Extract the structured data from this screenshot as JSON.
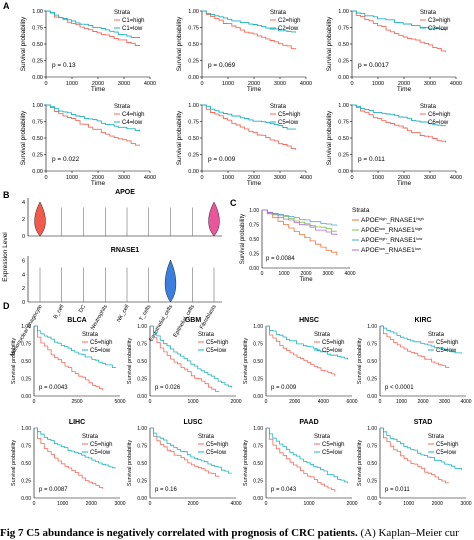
{
  "panels": {
    "A": {
      "label": "A",
      "plots": [
        {
          "strata": "Strata",
          "high": "C1=high",
          "low": "C1=low",
          "p": "p = 0.13",
          "ylabel": "Survival probability",
          "xlabel": "Time",
          "xticks": [
            "0",
            "1000",
            "2000",
            "3000",
            "4000"
          ],
          "yticks": [
            "0.00",
            "0.25",
            "0.50",
            "0.75",
            "1.00"
          ]
        },
        {
          "strata": "Strata",
          "high": "C2=high",
          "low": "C2=low",
          "p": "p = 0.069",
          "ylabel": "Survival probability",
          "xlabel": "Time",
          "xticks": [
            "0",
            "1000",
            "2000",
            "3000",
            "4000"
          ],
          "yticks": [
            "0.00",
            "0.25",
            "0.50",
            "0.75",
            "1.00"
          ]
        },
        {
          "strata": "Strata",
          "high": "C3=high",
          "low": "C3=low",
          "p": "p = 0.0017",
          "ylabel": "Survival probability",
          "xlabel": "Time",
          "xticks": [
            "0",
            "1000",
            "2000",
            "3000",
            "4000"
          ],
          "yticks": [
            "0.00",
            "0.25",
            "0.50",
            "0.75",
            "1.00"
          ]
        },
        {
          "strata": "Strata",
          "high": "C4=high",
          "low": "C4=low",
          "p": "p = 0.022",
          "ylabel": "Survival probability",
          "xlabel": "Time",
          "xticks": [
            "0",
            "1000",
            "2000",
            "3000",
            "4000"
          ],
          "yticks": [
            "0.00",
            "0.25",
            "0.50",
            "0.75",
            "1.00"
          ]
        },
        {
          "strata": "Strata",
          "high": "C5=high",
          "low": "C5=low",
          "p": "p = 0.009",
          "ylabel": "Survival probability",
          "xlabel": "Time",
          "xticks": [
            "0",
            "1000",
            "2000",
            "3000",
            "4000"
          ],
          "yticks": [
            "0.00",
            "0.25",
            "0.50",
            "0.75",
            "1.00"
          ]
        },
        {
          "strata": "Strata",
          "high": "C6=high",
          "low": "C6=low",
          "p": "p = 0.011",
          "ylabel": "Survival probability",
          "xlabel": "Time",
          "xticks": [
            "0",
            "1000",
            "2000",
            "3000",
            "4000"
          ],
          "yticks": [
            "0.00",
            "0.25",
            "0.50",
            "0.75",
            "1.00"
          ]
        }
      ]
    },
    "B": {
      "label": "B",
      "ylabel": "Expression Level",
      "genes": [
        {
          "name": "APOE",
          "yticks": [
            "0",
            "2",
            "4"
          ]
        },
        {
          "name": "RNASE1",
          "yticks": [
            "0",
            "2",
            "4",
            "6"
          ]
        }
      ],
      "celltypes": [
        "Mononuclear phagocyte",
        "B_cell",
        "DC",
        "Neutrophils",
        "NK_cell",
        "T_cells",
        "Endothelial_cells",
        "Epithelial_cells",
        "Fibroblasts"
      ]
    },
    "C": {
      "label": "C",
      "strata": "Strata",
      "legend": [
        {
          "main": "APOE",
          "s1": "high",
          "mid": "_RNASE1",
          "s2": "high"
        },
        {
          "main": "APOE",
          "s1": "low",
          "mid": "_RNASE1",
          "s2": "high"
        },
        {
          "main": "APOE",
          "s1": "high",
          "mid": "_RNASE1",
          "s2": "low"
        },
        {
          "main": "APOE",
          "s1": "low",
          "mid": "_RNASE1",
          "s2": "low"
        }
      ],
      "p": "p = 0.0084",
      "ylabel": "Survival probability",
      "xlabel": "Time",
      "xticks": [
        "0",
        "1000",
        "2000",
        "3000",
        "4000"
      ],
      "yticks": [
        "0.00",
        "0.25",
        "0.50",
        "0.75",
        "1.00"
      ]
    },
    "D": {
      "label": "D",
      "plots": [
        {
          "title": "BLCA",
          "strata": "Strata",
          "high": "C5=high",
          "low": "C5=low",
          "p": "p = 0.0043",
          "ylabel": "Survival probability",
          "xticks": [
            "0",
            "2500",
            "5000"
          ],
          "yticks": [
            "0.00",
            "0.25",
            "0.50",
            "0.75",
            "1.00"
          ]
        },
        {
          "title": "GBM",
          "strata": "Strata",
          "high": "C5=high",
          "low": "C5=low",
          "p": "p = 0.026",
          "ylabel": "Survival probability",
          "xticks": [
            "0",
            "1000",
            "2000"
          ],
          "yticks": [
            "0.00",
            "0.25",
            "0.50",
            "0.75",
            "1.00"
          ]
        },
        {
          "title": "HNSC",
          "strata": "Strata",
          "high": "C5=high",
          "low": "C5=low",
          "p": "p = 0.009",
          "ylabel": "Survival probability",
          "xticks": [
            "0",
            "2000",
            "4000",
            "6000"
          ],
          "yticks": [
            "0.00",
            "0.25",
            "0.50",
            "0.75",
            "1.00"
          ]
        },
        {
          "title": "KIRC",
          "strata": "Strata",
          "high": "C5=high",
          "low": "C5=low",
          "p": "p < 0.0001",
          "ylabel": "Survival probability",
          "xticks": [
            "0",
            "1000",
            "2000",
            "3000",
            "4000"
          ],
          "yticks": [
            "0.00",
            "0.25",
            "0.50",
            "0.75",
            "1.00"
          ]
        },
        {
          "title": "LIHC",
          "strata": "Strata",
          "high": "C5=high",
          "low": "C5=low",
          "p": "p = 0.0087",
          "ylabel": "Survival probability",
          "xticks": [
            "0",
            "1000",
            "2000",
            "3000"
          ],
          "yticks": [
            "0.00",
            "0.25",
            "0.50",
            "0.75",
            "1.00"
          ]
        },
        {
          "title": "LUSC",
          "strata": "Strata",
          "high": "C5=high",
          "low": "C5=low",
          "p": "p = 0.16",
          "ylabel": "Survival probability",
          "xticks": [
            "0",
            "2000",
            "4000"
          ],
          "yticks": [
            "0.00",
            "0.25",
            "0.50",
            "0.75",
            "1.00"
          ]
        },
        {
          "title": "PAAD",
          "strata": "Strata",
          "high": "C5=high",
          "low": "C5=low",
          "p": "p = 0.043",
          "ylabel": "Survival probability",
          "xticks": [
            "0",
            "1000",
            "2000"
          ],
          "yticks": [
            "0.00",
            "0.25",
            "0.50",
            "0.75",
            "1.00"
          ]
        },
        {
          "title": "STAD",
          "strata": "Strata",
          "high": "C5=high",
          "low": "C5=low",
          "p": "p = 0.011",
          "ylabel": "Survival probability",
          "xticks": [
            "0",
            "1000",
            "2000",
            "3000"
          ],
          "yticks": [
            "0.00",
            "0.25",
            "0.50",
            "0.75",
            "1.00"
          ]
        }
      ]
    }
  },
  "colors": {
    "high": "#f26b5e",
    "low": "#1fb3bd",
    "c_orange": "#f2743a",
    "c_green": "#7cc242",
    "c_blue": "#4aa8d8",
    "c_purple": "#b070d8",
    "violin_pink": "#e8579c",
    "violin_blue": "#3a7fe0"
  },
  "caption": {
    "bold": "Fig 7  C5 abundance is negatively correlated with prognosis of CRC patients.",
    "rest": " (A) Kaplan–Meier cur"
  }
}
